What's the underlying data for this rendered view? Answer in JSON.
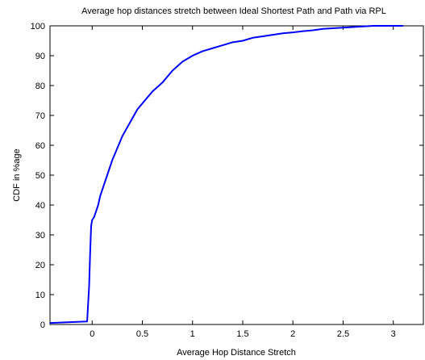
{
  "chart_data": {
    "type": "line",
    "title": "Average hop distances stretch between Ideal Shortest Path and Path via RPL",
    "xlabel": "Average Hop Distance Stretch",
    "ylabel": "CDF in %age",
    "xlim": [
      -0.42,
      3.3
    ],
    "ylim": [
      0,
      100
    ],
    "xticks": [
      0,
      0.5,
      1,
      1.5,
      2,
      2.5,
      3
    ],
    "xtick_labels": [
      "0",
      "0.5",
      "1",
      "1.5",
      "2",
      "2.5",
      "3"
    ],
    "yticks": [
      0,
      10,
      20,
      30,
      40,
      50,
      60,
      70,
      80,
      90,
      100
    ],
    "ytick_labels": [
      "0",
      "10",
      "20",
      "30",
      "40",
      "50",
      "60",
      "70",
      "80",
      "90",
      "100"
    ],
    "grid": false,
    "series": [
      {
        "color": "#0000ff",
        "x": [
          -0.42,
          -0.05,
          -0.03,
          -0.02,
          -0.01,
          0.0,
          0.02,
          0.04,
          0.06,
          0.08,
          0.1,
          0.12,
          0.15,
          0.18,
          0.2,
          0.25,
          0.3,
          0.35,
          0.4,
          0.45,
          0.5,
          0.55,
          0.6,
          0.65,
          0.7,
          0.75,
          0.8,
          0.9,
          1.0,
          1.1,
          1.2,
          1.3,
          1.4,
          1.5,
          1.6,
          1.7,
          1.8,
          1.9,
          2.0,
          2.1,
          2.2,
          2.3,
          2.4,
          2.5,
          2.6,
          2.7,
          2.8,
          3.1
        ],
        "y": [
          0.5,
          1,
          13,
          24,
          33,
          35,
          36,
          38,
          40,
          43,
          45,
          47,
          50,
          53,
          55,
          59,
          63,
          66,
          69,
          72,
          74,
          76,
          78,
          79.5,
          81,
          83,
          85,
          88,
          90,
          91.5,
          92.5,
          93.5,
          94.5,
          95,
          96,
          96.5,
          97,
          97.5,
          97.8,
          98.2,
          98.5,
          99,
          99.2,
          99.4,
          99.6,
          99.8,
          100,
          100
        ]
      }
    ]
  }
}
